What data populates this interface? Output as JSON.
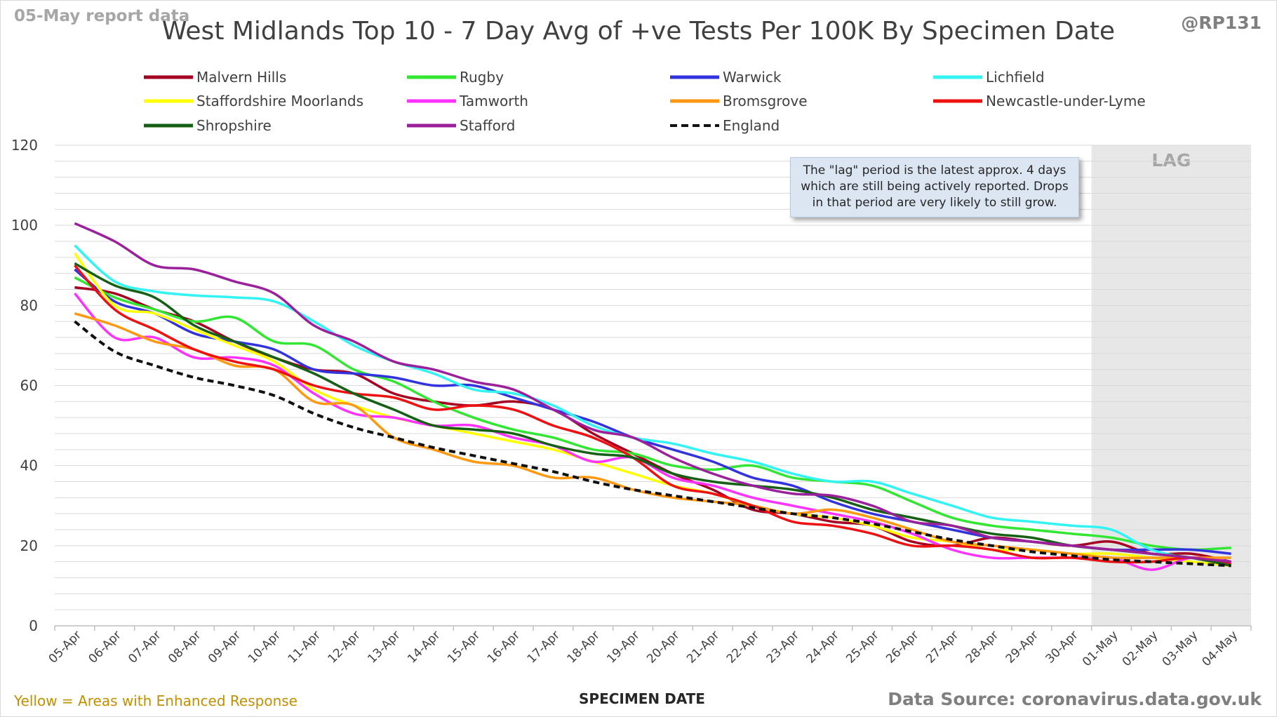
{
  "header": {
    "report_date": "05-May report data",
    "title": "West Midlands Top 10 - 7 Day Avg of +ve Tests Per 100K By Specimen Date",
    "author": "@RP131"
  },
  "note": "The \"lag\" period is the latest approx. 4 days which are still being actively reported. Drops in that period are very likely to still grow.",
  "footer": {
    "highlight_note": "Yellow = Areas with Enhanced Response",
    "source": "Data Source: coronavirus.data.gov.uk"
  },
  "colors": {
    "lag_band": "#e7e7e7",
    "gridline": "#d9d9d9",
    "note_box": "#dce6f2"
  },
  "chart_data": {
    "type": "line",
    "title": "West Midlands Top 10 - 7 Day Avg of +ve Tests Per 100K By Specimen Date",
    "xlabel": "SPECIMEN DATE",
    "ylabel": "",
    "ylim": [
      0,
      120
    ],
    "yticks": [
      0,
      20,
      40,
      60,
      80,
      100,
      120
    ],
    "grid": true,
    "legend": "top",
    "lag_band": {
      "label": "LAG",
      "from": "01-May",
      "to": "04-May"
    },
    "categories": [
      "05-Apr",
      "06-Apr",
      "07-Apr",
      "08-Apr",
      "09-Apr",
      "10-Apr",
      "11-Apr",
      "12-Apr",
      "13-Apr",
      "14-Apr",
      "15-Apr",
      "16-Apr",
      "17-Apr",
      "18-Apr",
      "19-Apr",
      "20-Apr",
      "21-Apr",
      "22-Apr",
      "23-Apr",
      "24-Apr",
      "25-Apr",
      "26-Apr",
      "27-Apr",
      "28-Apr",
      "29-Apr",
      "30-Apr",
      "01-May",
      "02-May",
      "03-May",
      "04-May"
    ],
    "series": [
      {
        "name": "Malvern Hills",
        "color": "#a50021",
        "dash": false,
        "values": [
          84.5,
          83,
          79,
          76,
          71,
          67,
          64,
          63,
          58,
          56,
          55,
          56,
          54,
          48,
          43,
          38,
          34,
          29,
          28,
          26,
          25,
          21,
          20,
          22,
          21,
          20,
          21,
          18,
          18,
          16
        ]
      },
      {
        "name": "Rugby",
        "color": "#33e633",
        "dash": false,
        "values": [
          87,
          82,
          79,
          76,
          77,
          71,
          70,
          64,
          61,
          56,
          52,
          49,
          47,
          44,
          43,
          40,
          39,
          40,
          37,
          36,
          35,
          31,
          27,
          25,
          24,
          23,
          22,
          20,
          19,
          19.5
        ]
      },
      {
        "name": "Warwick",
        "color": "#3333dd",
        "dash": false,
        "values": [
          89,
          81,
          78,
          73,
          71,
          69,
          64,
          63,
          62,
          60,
          60,
          57,
          54,
          51,
          47,
          44,
          41,
          37,
          35,
          31,
          28,
          26,
          24,
          22,
          21,
          20,
          19,
          19,
          19,
          18
        ]
      },
      {
        "name": "Lichfield",
        "color": "#33f3f3",
        "dash": false,
        "values": [
          95,
          86,
          83.5,
          82.5,
          82,
          81,
          76,
          70,
          66,
          63,
          59,
          58,
          55,
          50,
          47,
          45.5,
          43,
          41,
          38,
          36,
          36,
          33,
          30,
          27,
          26,
          25,
          24,
          19,
          17,
          17
        ]
      },
      {
        "name": "Staffordshire Moorlands",
        "color": "#ffff00",
        "dash": false,
        "values": [
          93,
          80,
          78,
          74,
          70,
          66,
          59,
          55,
          52,
          50,
          48,
          46,
          44,
          41,
          38,
          35,
          33,
          30,
          28,
          27,
          25,
          22,
          21,
          19,
          19,
          18,
          18,
          17,
          16,
          15
        ]
      },
      {
        "name": "Tamworth",
        "color": "#ff33ff",
        "dash": false,
        "values": [
          83,
          72,
          72,
          67,
          67,
          65,
          58,
          53,
          52,
          50,
          50,
          47,
          45,
          41,
          42,
          37,
          35,
          32,
          30,
          28,
          26,
          23,
          19,
          17,
          17,
          17,
          17,
          14,
          17,
          16
        ]
      },
      {
        "name": "Bromsgrove",
        "color": "#ff9912",
        "dash": false,
        "values": [
          78,
          75,
          71,
          69,
          65,
          64,
          56,
          55,
          47,
          44,
          41,
          40,
          37,
          37,
          34,
          32,
          31,
          30,
          28,
          29,
          27,
          24,
          21,
          20,
          19,
          18,
          17,
          17,
          17,
          17
        ]
      },
      {
        "name": "Newcastle-under-Lyme",
        "color": "#ee1111",
        "dash": false,
        "values": [
          90,
          79,
          74,
          69,
          66,
          64,
          60,
          58,
          57,
          54,
          55,
          54,
          50,
          47,
          42,
          35,
          33,
          30,
          26,
          25,
          23,
          20,
          20,
          19,
          17,
          17,
          16,
          16,
          17,
          15.5
        ]
      },
      {
        "name": "Shropshire",
        "color": "#156015",
        "dash": false,
        "values": [
          90.5,
          85,
          82,
          75,
          71,
          67,
          63,
          58,
          54,
          50,
          49,
          48,
          45,
          43,
          42,
          38,
          36,
          35,
          34,
          32,
          29,
          27,
          25,
          23,
          22,
          20,
          19,
          18,
          17,
          15
        ]
      },
      {
        "name": "Stafford",
        "color": "#9b209b",
        "dash": false,
        "values": [
          100.5,
          96,
          90,
          89,
          86,
          83,
          75,
          71,
          66,
          64,
          61,
          59,
          54,
          49,
          47,
          42,
          38,
          35,
          33,
          32.5,
          30,
          26,
          25,
          22,
          21,
          20,
          19,
          18,
          17,
          16
        ]
      },
      {
        "name": "England",
        "color": "#111111",
        "dash": true,
        "values": [
          76,
          68.5,
          65,
          62,
          60,
          57.5,
          53,
          49.5,
          47,
          44.5,
          42.5,
          40.5,
          38.5,
          36,
          34,
          32.5,
          31,
          29.5,
          28,
          27,
          25.5,
          23.5,
          21.5,
          20,
          18.5,
          17.5,
          16.5,
          16,
          15.5,
          15
        ]
      }
    ]
  }
}
